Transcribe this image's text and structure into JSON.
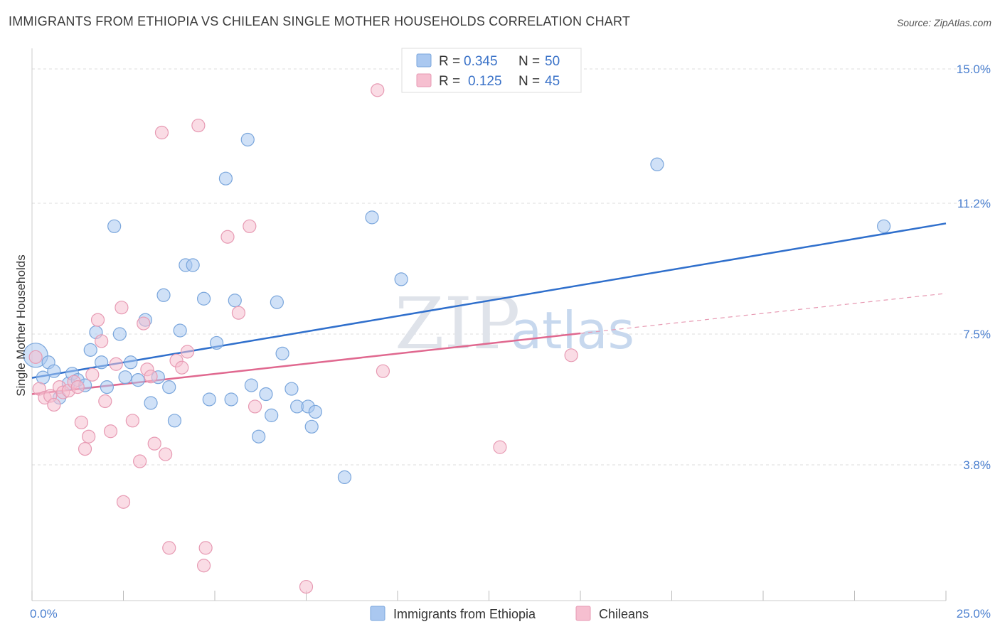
{
  "title": "IMMIGRANTS FROM ETHIOPIA VS CHILEAN SINGLE MOTHER HOUSEHOLDS CORRELATION CHART",
  "source": "Source: ZipAtlas.com",
  "watermark": {
    "zip": "ZIP",
    "atlas": "atlas"
  },
  "colors": {
    "blue_fill": "#aac8f0",
    "blue_stroke": "#7aa6dc",
    "blue_line": "#2f6fcc",
    "pink_fill": "#f6bfd0",
    "pink_stroke": "#e79ab3",
    "pink_line": "#e0688f",
    "grid": "#dddddd",
    "tick_label": "#4a7fcf"
  },
  "legend": {
    "rows": [
      {
        "r_label": "R =",
        "r_value": "0.345",
        "n_label": "N =",
        "n_value": "50"
      },
      {
        "r_label": "R =",
        "r_value": "0.125",
        "n_label": "N =",
        "n_value": "45"
      }
    ]
  },
  "chart_data": {
    "type": "scatter",
    "title": "IMMIGRANTS FROM ETHIOPIA VS CHILEAN SINGLE MOTHER HOUSEHOLDS CORRELATION CHART",
    "xlabel": "",
    "ylabel": "Single Mother Households",
    "xlim": [
      0,
      25
    ],
    "ylim": [
      0.5,
      15.5
    ],
    "x_tick_labels": [
      "0.0%",
      "25.0%"
    ],
    "y_ticks": [
      3.8,
      7.5,
      11.2,
      15.0
    ],
    "y_tick_labels": [
      "3.8%",
      "7.5%",
      "11.2%",
      "15.0%"
    ],
    "grid": true,
    "legend_position": "top-center",
    "series": [
      {
        "name": "Immigrants from Ethiopia",
        "color": "#aac8f0",
        "trend": {
          "x": [
            0,
            25
          ],
          "y": [
            6.26,
            10.63
          ]
        },
        "points": [
          [
            0.1,
            6.9
          ],
          [
            0.3,
            6.27
          ],
          [
            0.45,
            6.7
          ],
          [
            0.6,
            6.45
          ],
          [
            0.75,
            5.7
          ],
          [
            1.0,
            6.1
          ],
          [
            1.1,
            6.38
          ],
          [
            1.25,
            6.2
          ],
          [
            1.45,
            6.05
          ],
          [
            1.6,
            7.05
          ],
          [
            1.75,
            7.55
          ],
          [
            1.9,
            6.7
          ],
          [
            2.05,
            6.0
          ],
          [
            2.25,
            10.55
          ],
          [
            2.4,
            7.5
          ],
          [
            2.55,
            6.28
          ],
          [
            2.7,
            6.7
          ],
          [
            2.9,
            6.2
          ],
          [
            3.1,
            7.9
          ],
          [
            3.25,
            5.55
          ],
          [
            3.45,
            6.28
          ],
          [
            3.6,
            8.6
          ],
          [
            3.75,
            6.0
          ],
          [
            3.9,
            5.05
          ],
          [
            4.05,
            7.6
          ],
          [
            4.2,
            9.45
          ],
          [
            4.4,
            9.45
          ],
          [
            4.7,
            8.5
          ],
          [
            4.85,
            5.65
          ],
          [
            5.05,
            7.25
          ],
          [
            5.3,
            11.9
          ],
          [
            5.45,
            5.65
          ],
          [
            5.55,
            8.45
          ],
          [
            5.9,
            13.0
          ],
          [
            6.0,
            6.05
          ],
          [
            6.2,
            4.6
          ],
          [
            6.4,
            5.8
          ],
          [
            6.55,
            5.2
          ],
          [
            6.7,
            8.4
          ],
          [
            6.85,
            6.95
          ],
          [
            7.1,
            5.95
          ],
          [
            7.25,
            5.45
          ],
          [
            7.55,
            5.45
          ],
          [
            7.65,
            4.88
          ],
          [
            7.75,
            5.3
          ],
          [
            8.55,
            3.45
          ],
          [
            9.3,
            10.8
          ],
          [
            10.1,
            9.05
          ],
          [
            17.1,
            12.3
          ],
          [
            23.3,
            10.55
          ]
        ]
      },
      {
        "name": "Chileans",
        "color": "#f6bfd0",
        "trend": {
          "x": [
            0,
            15
          ],
          "y": [
            5.8,
            7.52
          ]
        },
        "trend_dashed": {
          "x": [
            15,
            25
          ],
          "y": [
            7.52,
            8.65
          ]
        },
        "points": [
          [
            0.1,
            6.85
          ],
          [
            0.2,
            5.95
          ],
          [
            0.35,
            5.7
          ],
          [
            0.5,
            5.75
          ],
          [
            0.6,
            5.5
          ],
          [
            0.75,
            6.0
          ],
          [
            0.85,
            5.85
          ],
          [
            1.0,
            5.9
          ],
          [
            1.15,
            6.15
          ],
          [
            1.25,
            6.0
          ],
          [
            1.35,
            5.0
          ],
          [
            1.45,
            4.25
          ],
          [
            1.55,
            4.6
          ],
          [
            1.65,
            6.35
          ],
          [
            1.8,
            7.9
          ],
          [
            1.9,
            7.3
          ],
          [
            2.0,
            5.6
          ],
          [
            2.15,
            4.75
          ],
          [
            2.3,
            6.65
          ],
          [
            2.45,
            8.25
          ],
          [
            2.5,
            2.75
          ],
          [
            2.75,
            5.05
          ],
          [
            2.95,
            3.9
          ],
          [
            3.05,
            7.8
          ],
          [
            3.15,
            6.5
          ],
          [
            3.25,
            6.3
          ],
          [
            3.35,
            4.4
          ],
          [
            3.55,
            13.2
          ],
          [
            3.65,
            4.1
          ],
          [
            3.75,
            1.45
          ],
          [
            3.95,
            6.75
          ],
          [
            4.1,
            6.55
          ],
          [
            4.25,
            7.0
          ],
          [
            4.55,
            13.4
          ],
          [
            4.7,
            0.95
          ],
          [
            4.75,
            1.45
          ],
          [
            5.35,
            10.25
          ],
          [
            5.65,
            8.1
          ],
          [
            5.95,
            10.55
          ],
          [
            6.1,
            5.45
          ],
          [
            7.5,
            0.35
          ],
          [
            9.45,
            14.4
          ],
          [
            9.6,
            6.45
          ],
          [
            12.8,
            4.3
          ],
          [
            14.75,
            6.9
          ]
        ]
      }
    ]
  }
}
